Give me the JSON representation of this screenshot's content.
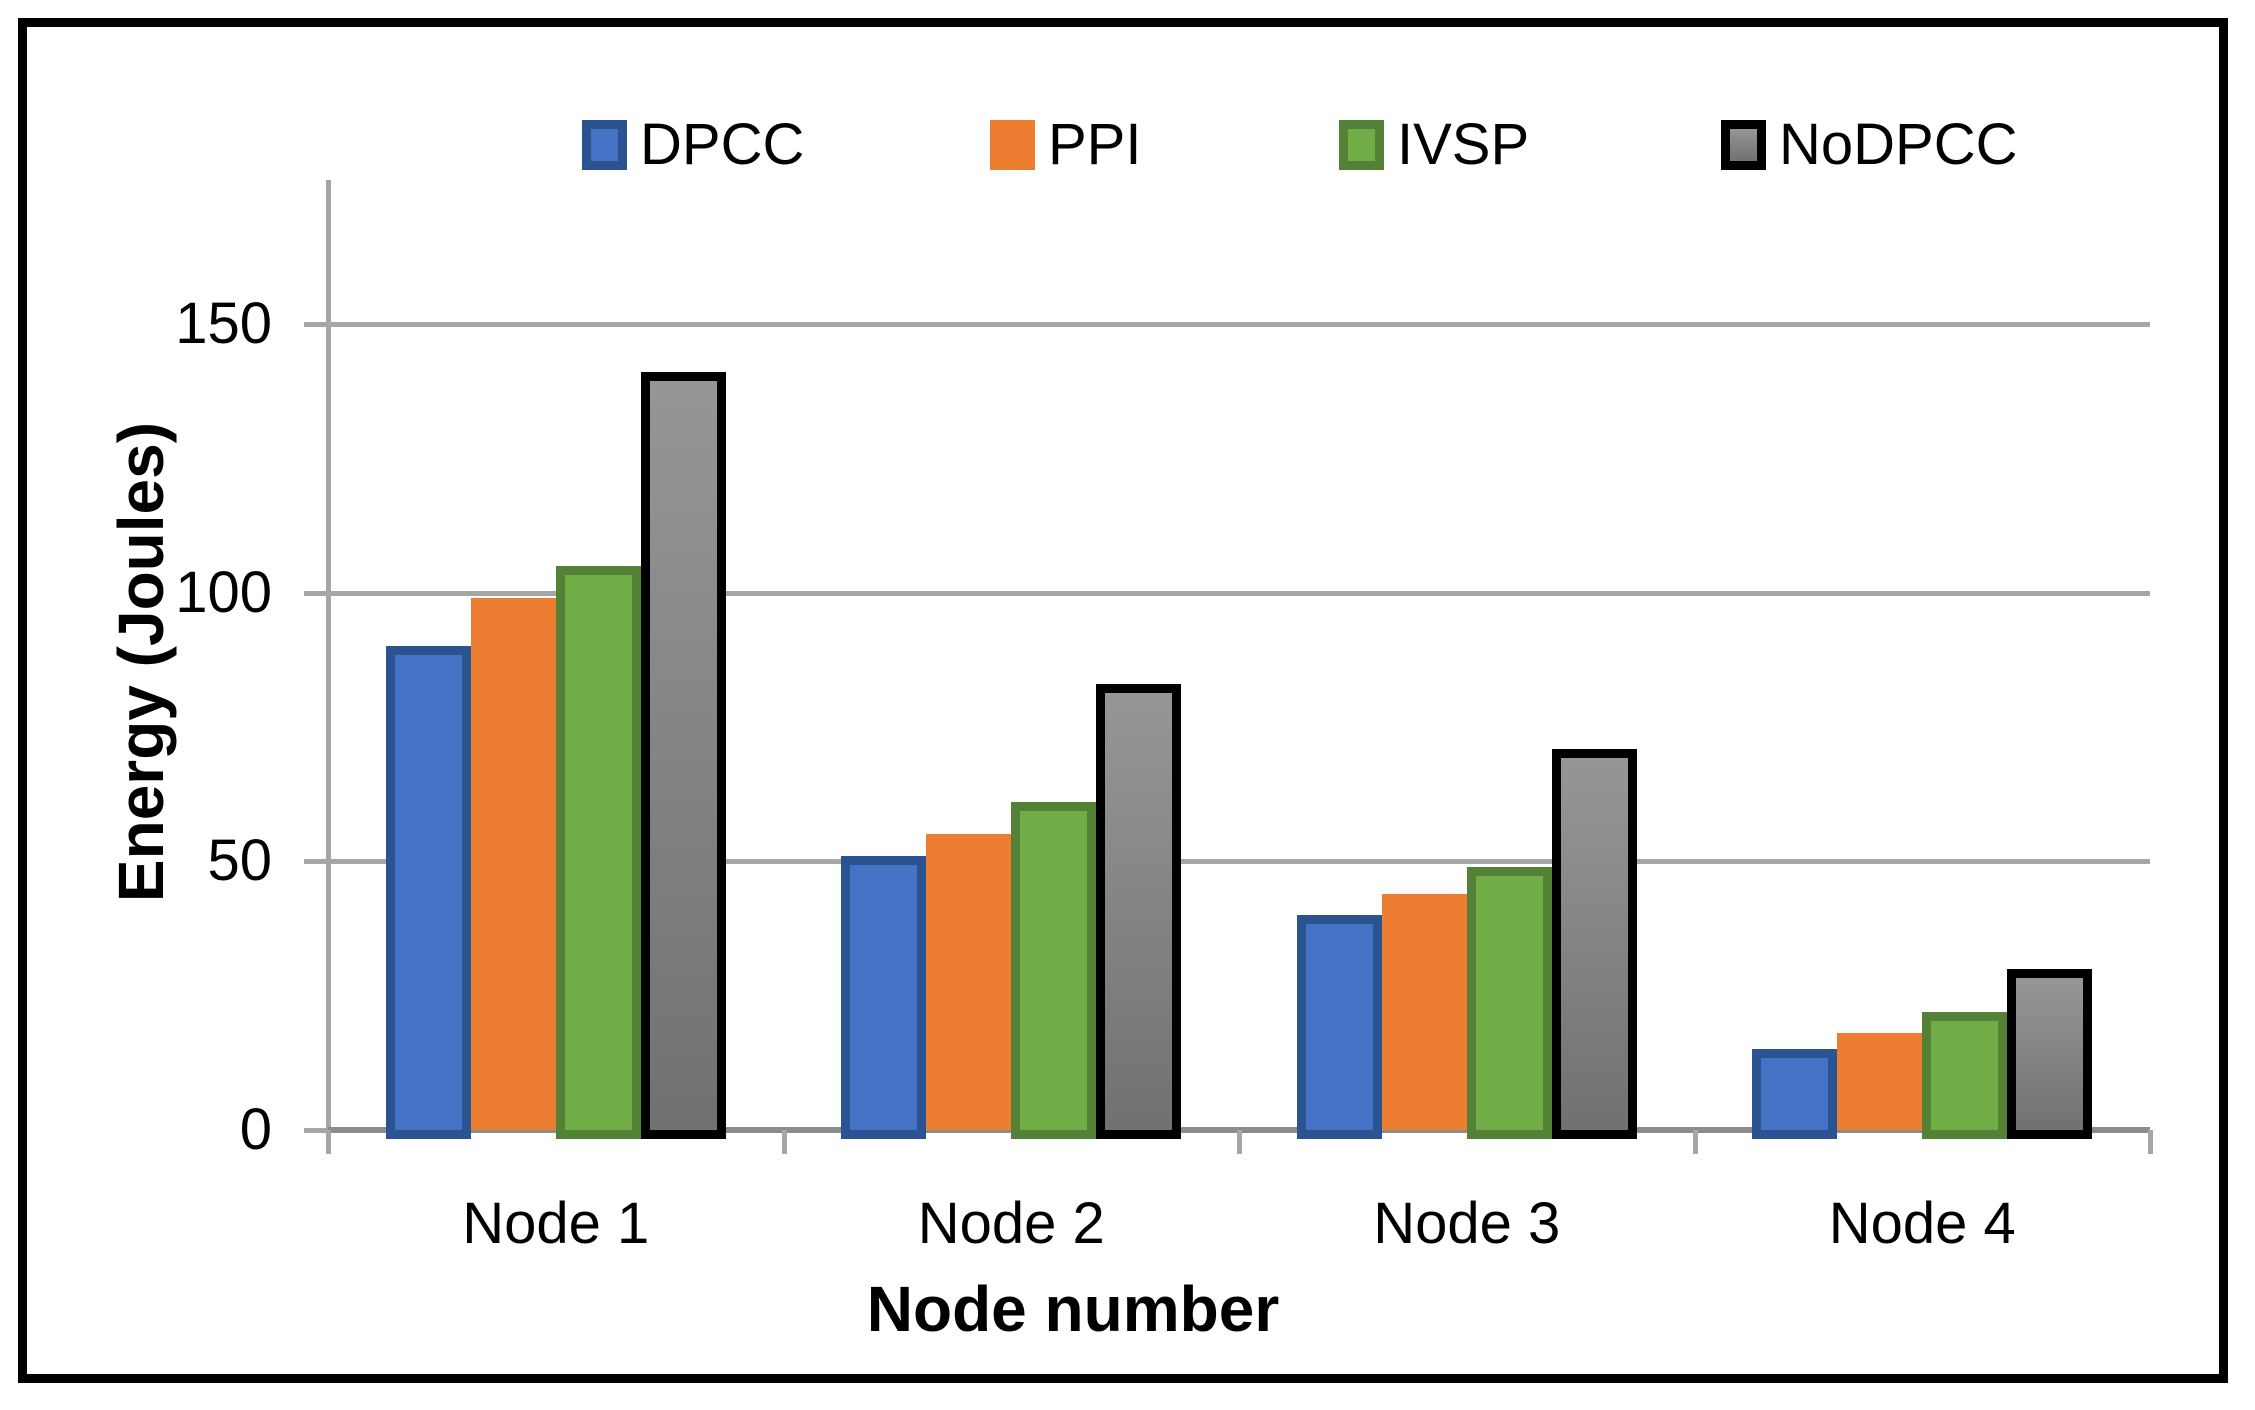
{
  "figure": {
    "background": "#ffffff",
    "frame_border_color": "#000000"
  },
  "legend": {
    "items": [
      {
        "label": "DPCC",
        "fill": "#4472c4",
        "border": "#2b5391",
        "gradient": false
      },
      {
        "label": "PPI",
        "fill": "#ed7d31",
        "border": null,
        "gradient": false
      },
      {
        "label": "IVSP",
        "fill": "#70ad47",
        "border": "#538135",
        "gradient": false
      },
      {
        "label": "NoDPCC",
        "fill": "#969696",
        "border": "#000000",
        "gradient": true,
        "gradient_to": "#717171"
      }
    ]
  },
  "y_axis": {
    "title": "Energy (Joules)",
    "tick_labels": [
      "150",
      "100",
      "50",
      "0"
    ],
    "tick_values": [
      150,
      100,
      50,
      0
    ]
  },
  "x_axis": {
    "title": "Node number",
    "categories": [
      "Node 1",
      "Node 2",
      "Node 3",
      "Node 4"
    ]
  },
  "chart_data": {
    "type": "bar",
    "title": "",
    "xlabel": "Node number",
    "ylabel": "Energy (Joules)",
    "categories": [
      "Node 1",
      "Node 2",
      "Node 3",
      "Node 4"
    ],
    "series": [
      {
        "name": "DPCC",
        "values": [
          90,
          51,
          40,
          15
        ],
        "fill": "#4472c4",
        "border": "#2b5391",
        "gradient": false
      },
      {
        "name": "PPI",
        "values": [
          99,
          55,
          44,
          18
        ],
        "fill": "#ed7d31",
        "border": null,
        "gradient": false
      },
      {
        "name": "IVSP",
        "values": [
          105,
          61,
          49,
          22
        ],
        "fill": "#70ad47",
        "border": "#538135",
        "gradient": false
      },
      {
        "name": "NoDPCC",
        "values": [
          141,
          83,
          71,
          30
        ],
        "fill": "#969696",
        "gradient_to": "#717171",
        "border": "#000000",
        "gradient": true
      }
    ],
    "ylim": [
      0,
      175
    ],
    "gridlines_at": [
      150,
      100,
      50
    ],
    "grid_color": "#a6a6a6",
    "legend_position": "top"
  }
}
